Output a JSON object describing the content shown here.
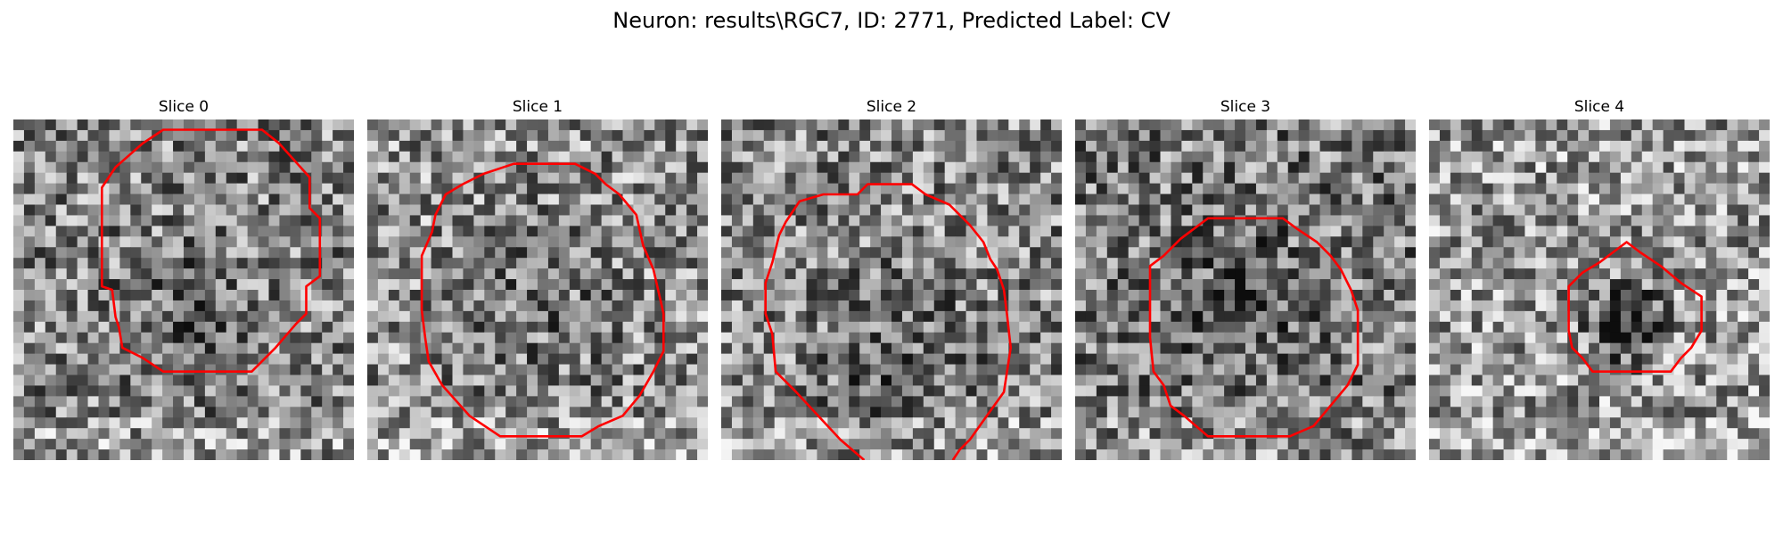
{
  "figure": {
    "title": "Neuron: results\\RGC7, ID: 2771, Predicted Label: CV"
  },
  "slices": [
    {
      "title": "Slice 0",
      "seed": 11,
      "bias": 0.02,
      "dark_spot": [
        0.5,
        0.58,
        0.3,
        0.1
      ],
      "contour": [
        [
          0.44,
          0.03
        ],
        [
          0.73,
          0.03
        ],
        [
          0.78,
          0.07
        ],
        [
          0.87,
          0.17
        ],
        [
          0.87,
          0.26
        ],
        [
          0.9,
          0.29
        ],
        [
          0.9,
          0.46
        ],
        [
          0.86,
          0.49
        ],
        [
          0.86,
          0.57
        ],
        [
          0.83,
          0.6
        ],
        [
          0.77,
          0.67
        ],
        [
          0.7,
          0.74
        ],
        [
          0.44,
          0.74
        ],
        [
          0.38,
          0.7
        ],
        [
          0.32,
          0.67
        ],
        [
          0.31,
          0.61
        ],
        [
          0.3,
          0.58
        ],
        [
          0.29,
          0.5
        ],
        [
          0.26,
          0.49
        ],
        [
          0.26,
          0.2
        ],
        [
          0.3,
          0.14
        ],
        [
          0.38,
          0.07
        ]
      ]
    },
    {
      "title": "Slice 1",
      "seed": 23,
      "bias": 0.06,
      "dark_spot": [
        0.5,
        0.55,
        0.4,
        0.08
      ],
      "contour": [
        [
          0.43,
          0.13
        ],
        [
          0.61,
          0.13
        ],
        [
          0.67,
          0.16
        ],
        [
          0.7,
          0.19
        ],
        [
          0.74,
          0.22
        ],
        [
          0.79,
          0.28
        ],
        [
          0.81,
          0.37
        ],
        [
          0.84,
          0.44
        ],
        [
          0.87,
          0.57
        ],
        [
          0.87,
          0.68
        ],
        [
          0.84,
          0.74
        ],
        [
          0.8,
          0.81
        ],
        [
          0.75,
          0.87
        ],
        [
          0.68,
          0.9
        ],
        [
          0.63,
          0.93
        ],
        [
          0.39,
          0.93
        ],
        [
          0.3,
          0.87
        ],
        [
          0.22,
          0.78
        ],
        [
          0.18,
          0.71
        ],
        [
          0.17,
          0.64
        ],
        [
          0.16,
          0.56
        ],
        [
          0.16,
          0.4
        ],
        [
          0.19,
          0.33
        ],
        [
          0.2,
          0.28
        ],
        [
          0.23,
          0.22
        ],
        [
          0.28,
          0.19
        ],
        [
          0.34,
          0.16
        ]
      ]
    },
    {
      "title": "Slice 2",
      "seed": 37,
      "bias": 0.03,
      "dark_spot": [
        0.5,
        0.7,
        0.35,
        0.1
      ],
      "contour": [
        [
          0.42,
          1.0
        ],
        [
          0.35,
          0.94
        ],
        [
          0.22,
          0.8
        ],
        [
          0.16,
          0.74
        ],
        [
          0.15,
          0.63
        ],
        [
          0.13,
          0.57
        ],
        [
          0.13,
          0.48
        ],
        [
          0.15,
          0.42
        ],
        [
          0.17,
          0.34
        ],
        [
          0.19,
          0.3
        ],
        [
          0.23,
          0.24
        ],
        [
          0.3,
          0.22
        ],
        [
          0.4,
          0.22
        ],
        [
          0.43,
          0.19
        ],
        [
          0.56,
          0.19
        ],
        [
          0.6,
          0.22
        ],
        [
          0.67,
          0.25
        ],
        [
          0.73,
          0.31
        ],
        [
          0.77,
          0.36
        ],
        [
          0.79,
          0.41
        ],
        [
          0.81,
          0.44
        ],
        [
          0.83,
          0.5
        ],
        [
          0.84,
          0.58
        ],
        [
          0.85,
          0.67
        ],
        [
          0.83,
          0.8
        ],
        [
          0.78,
          0.87
        ],
        [
          0.73,
          0.94
        ],
        [
          0.7,
          0.97
        ],
        [
          0.68,
          1.0
        ]
      ],
      "open": true
    },
    {
      "title": "Slice 3",
      "seed": 51,
      "bias": -0.02,
      "dark_spot": [
        0.5,
        0.55,
        0.3,
        0.12
      ],
      "contour": [
        [
          0.39,
          0.29
        ],
        [
          0.61,
          0.29
        ],
        [
          0.65,
          0.32
        ],
        [
          0.71,
          0.36
        ],
        [
          0.75,
          0.4
        ],
        [
          0.78,
          0.44
        ],
        [
          0.81,
          0.5
        ],
        [
          0.83,
          0.56
        ],
        [
          0.83,
          0.72
        ],
        [
          0.8,
          0.78
        ],
        [
          0.75,
          0.84
        ],
        [
          0.7,
          0.9
        ],
        [
          0.63,
          0.93
        ],
        [
          0.39,
          0.93
        ],
        [
          0.32,
          0.87
        ],
        [
          0.28,
          0.84
        ],
        [
          0.26,
          0.78
        ],
        [
          0.23,
          0.74
        ],
        [
          0.22,
          0.64
        ],
        [
          0.22,
          0.43
        ],
        [
          0.26,
          0.4
        ],
        [
          0.31,
          0.35
        ]
      ]
    },
    {
      "title": "Slice 4",
      "seed": 67,
      "bias": 0.1,
      "dark_spot": [
        0.58,
        0.6,
        0.16,
        0.35
      ],
      "contour": [
        [
          0.58,
          0.36
        ],
        [
          0.62,
          0.39
        ],
        [
          0.68,
          0.43
        ],
        [
          0.74,
          0.48
        ],
        [
          0.8,
          0.52
        ],
        [
          0.8,
          0.62
        ],
        [
          0.77,
          0.67
        ],
        [
          0.74,
          0.7
        ],
        [
          0.71,
          0.74
        ],
        [
          0.63,
          0.74
        ],
        [
          0.55,
          0.74
        ],
        [
          0.48,
          0.74
        ],
        [
          0.45,
          0.7
        ],
        [
          0.42,
          0.67
        ],
        [
          0.41,
          0.62
        ],
        [
          0.41,
          0.49
        ],
        [
          0.45,
          0.45
        ],
        [
          0.5,
          0.42
        ],
        [
          0.54,
          0.39
        ]
      ]
    }
  ],
  "colors": {
    "contour": "#ff0000",
    "background": "#ffffff"
  }
}
